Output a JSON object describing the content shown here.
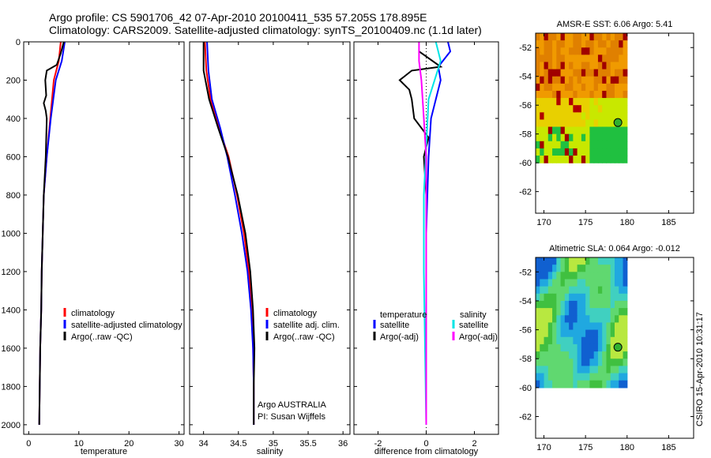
{
  "header": {
    "title_line1": "Argo profile: CS 5901706_42 07-Apr-2010 20100411_535 57.205S 178.895E",
    "title_line2": "Climatology: CARS2009. Satellite-adjusted climatology: synTS_20100409.nc (1.1d later)"
  },
  "timestamp": "CSIRO 15-Apr-2010 10:31:17",
  "colors": {
    "climatology": "#ff0000",
    "satellite": "#0000ff",
    "argo": "#000000",
    "satellite_sal": "#00e5e5",
    "argo_sal": "#ff00ff"
  },
  "chart_data": [
    {
      "type": "line",
      "xlabel": "temperature",
      "xlim": [
        -1,
        31
      ],
      "ylim": [
        2050,
        0
      ],
      "xticks": [
        "0",
        "10",
        "20",
        "30"
      ],
      "yticks": [
        "0",
        "200",
        "400",
        "600",
        "800",
        "1000",
        "1200",
        "1400",
        "1600",
        "1800",
        "2000"
      ],
      "legend": [
        "climatology",
        "satellite-adjusted climatology",
        "Argo(..raw -QC)"
      ],
      "series": [
        {
          "name": "climatology",
          "color": "red",
          "points": [
            [
              6.4,
              0
            ],
            [
              6.0,
              100
            ],
            [
              5.0,
              200
            ],
            [
              4.3,
              400
            ],
            [
              3.6,
              600
            ],
            [
              3.0,
              800
            ],
            [
              2.8,
              1000
            ],
            [
              2.6,
              1200
            ],
            [
              2.5,
              1400
            ],
            [
              2.3,
              1600
            ],
            [
              2.2,
              1800
            ],
            [
              2.1,
              2000
            ]
          ]
        },
        {
          "name": "satellite-adjusted climatology",
          "color": "blue",
          "points": [
            [
              7.2,
              0
            ],
            [
              6.6,
              100
            ],
            [
              5.4,
              200
            ],
            [
              4.4,
              400
            ],
            [
              3.6,
              600
            ],
            [
              3.0,
              800
            ],
            [
              2.8,
              1000
            ],
            [
              2.6,
              1200
            ],
            [
              2.5,
              1400
            ],
            [
              2.3,
              1600
            ],
            [
              2.2,
              1800
            ],
            [
              2.1,
              2000
            ]
          ]
        },
        {
          "name": "Argo(..raw -QC)",
          "color": "black",
          "points": [
            [
              7.0,
              0
            ],
            [
              6.4,
              60
            ],
            [
              5.6,
              120
            ],
            [
              3.6,
              150
            ],
            [
              3.3,
              200
            ],
            [
              3.5,
              280
            ],
            [
              3.0,
              320
            ],
            [
              3.4,
              360
            ],
            [
              3.6,
              400
            ],
            [
              3.4,
              600
            ],
            [
              3.0,
              800
            ],
            [
              2.8,
              1000
            ],
            [
              2.6,
              1200
            ],
            [
              2.5,
              1400
            ],
            [
              2.3,
              1600
            ],
            [
              2.2,
              1800
            ],
            [
              2.1,
              2000
            ]
          ]
        }
      ]
    },
    {
      "type": "line",
      "xlabel": "salinity",
      "xlim": [
        33.8,
        36.1
      ],
      "ylim": [
        2050,
        0
      ],
      "xticks": [
        "34",
        "34.5",
        "35",
        "35.5",
        "36"
      ],
      "legend": [
        "climatology",
        "satellite adj. clim.",
        "Argo(..raw -QC)"
      ],
      "annotation": [
        "Argo AUSTRALIA",
        "PI: Susan Wijffels"
      ],
      "series": [
        {
          "name": "climatology",
          "color": "red",
          "points": [
            [
              34.02,
              0
            ],
            [
              34.04,
              150
            ],
            [
              34.1,
              300
            ],
            [
              34.22,
              450
            ],
            [
              34.36,
              600
            ],
            [
              34.48,
              800
            ],
            [
              34.58,
              1000
            ],
            [
              34.65,
              1200
            ],
            [
              34.69,
              1400
            ],
            [
              34.71,
              1600
            ],
            [
              34.72,
              1800
            ],
            [
              34.72,
              2000
            ]
          ]
        },
        {
          "name": "satellite adj. clim.",
          "color": "blue",
          "points": [
            [
              34.05,
              0
            ],
            [
              34.07,
              150
            ],
            [
              34.12,
              300
            ],
            [
              34.24,
              450
            ],
            [
              34.34,
              600
            ],
            [
              34.45,
              800
            ],
            [
              34.55,
              1000
            ],
            [
              34.63,
              1200
            ],
            [
              34.68,
              1400
            ],
            [
              34.71,
              1600
            ],
            [
              34.72,
              1800
            ],
            [
              34.72,
              2000
            ]
          ]
        },
        {
          "name": "Argo(..raw -QC)",
          "color": "black",
          "points": [
            [
              34.0,
              0
            ],
            [
              34.0,
              150
            ],
            [
              34.08,
              300
            ],
            [
              34.21,
              450
            ],
            [
              34.35,
              600
            ],
            [
              34.49,
              800
            ],
            [
              34.6,
              1000
            ],
            [
              34.67,
              1200
            ],
            [
              34.71,
              1400
            ],
            [
              34.73,
              1600
            ],
            [
              34.72,
              1800
            ],
            [
              34.72,
              2000
            ]
          ]
        }
      ]
    },
    {
      "type": "line",
      "xlabel": "difference from climatology",
      "xlim": [
        -3,
        3
      ],
      "ylim": [
        2050,
        0
      ],
      "xticks": [
        "-2",
        "0",
        "2"
      ],
      "legend_left_title": "temperature",
      "legend_right_title": "salinity",
      "legend_left": [
        "satellite",
        "Argo(-adj)"
      ],
      "legend_right": [
        "satellite",
        "Argo(-adj)"
      ],
      "series": [
        {
          "name": "temperature satellite",
          "color": "blue",
          "points": [
            [
              0.9,
              0
            ],
            [
              1.0,
              50
            ],
            [
              0.5,
              130
            ],
            [
              0.6,
              200
            ],
            [
              0.2,
              400
            ],
            [
              0.1,
              600
            ],
            [
              0.0,
              1000
            ],
            [
              0.0,
              2000
            ]
          ]
        },
        {
          "name": "temperature Argo(-adj)",
          "color": "black",
          "points": [
            [
              -0.3,
              50
            ],
            [
              0.6,
              130
            ],
            [
              -0.6,
              150
            ],
            [
              -1.1,
              200
            ],
            [
              -0.7,
              250
            ],
            [
              -0.6,
              300
            ],
            [
              -0.5,
              400
            ],
            [
              0.1,
              500
            ],
            [
              -0.1,
              600
            ],
            [
              0.0,
              800
            ],
            [
              0.0,
              2000
            ]
          ]
        },
        {
          "name": "salinity satellite",
          "color": "cyan",
          "points": [
            [
              0.4,
              0
            ],
            [
              0.6,
              100
            ],
            [
              0.1,
              300
            ],
            [
              -0.1,
              800
            ],
            [
              -0.1,
              1200
            ],
            [
              0.0,
              2000
            ]
          ]
        },
        {
          "name": "salinity Argo(-adj)",
          "color": "magenta",
          "points": [
            [
              -0.3,
              0
            ],
            [
              -0.3,
              100
            ],
            [
              -0.2,
              200
            ],
            [
              -0.1,
              400
            ],
            [
              0.0,
              600
            ],
            [
              0.0,
              1000
            ],
            [
              0.0,
              2000
            ]
          ]
        }
      ]
    },
    {
      "type": "heatmap",
      "title": "AMSR-E SST: 6.06 Argo: 5.41",
      "xlim": [
        169,
        188
      ],
      "ylim": [
        -63.5,
        -51
      ],
      "xticks": [
        "170",
        "175",
        "180",
        "185"
      ],
      "yticks": [
        "-52",
        "-54",
        "-56",
        "-58",
        "-60",
        "-62"
      ],
      "data_extent": {
        "lon": [
          169,
          180
        ],
        "lat": [
          -60,
          -51
        ]
      },
      "marker": {
        "lon": 178.895,
        "lat": -57.205
      }
    },
    {
      "type": "heatmap",
      "title": "Altimetric SLA: 0.064 Argo: -0.012",
      "xlim": [
        169,
        188
      ],
      "ylim": [
        -63.5,
        -51
      ],
      "xticks": [
        "170",
        "175",
        "180",
        "185"
      ],
      "yticks": [
        "-52",
        "-54",
        "-56",
        "-58",
        "-60",
        "-62"
      ],
      "data_extent": {
        "lon": [
          169,
          180
        ],
        "lat": [
          -60,
          -51
        ]
      },
      "marker": {
        "lon": 178.895,
        "lat": -57.205
      }
    }
  ]
}
